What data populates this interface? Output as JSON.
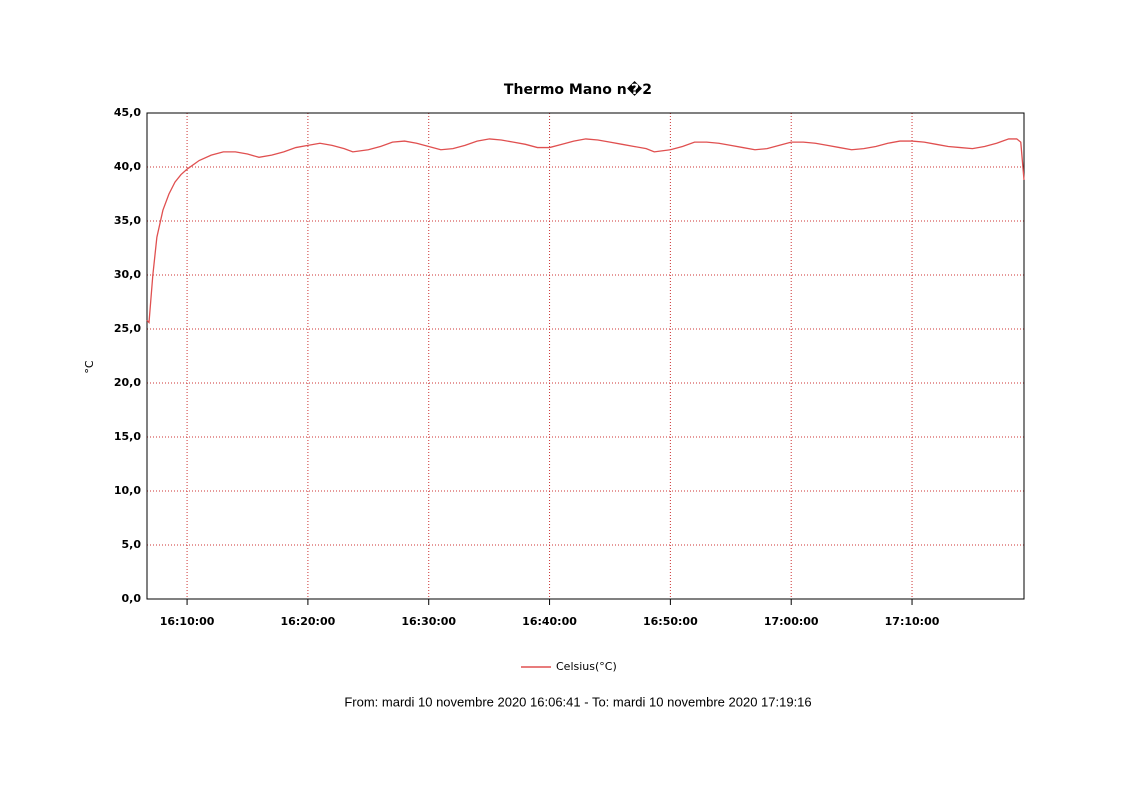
{
  "chart_data": {
    "type": "line",
    "title": "Thermo Mano n�2",
    "y_label": "°C",
    "footer": "From: mardi 10 novembre 2020 16:06:41  -  To: mardi 10 novembre 2020 17:19:16",
    "x": [
      "16:06:41",
      "16:06:51",
      "16:07:10",
      "16:07:30",
      "16:08:00",
      "16:08:30",
      "16:09:00",
      "16:09:30",
      "16:10:00",
      "16:11:00",
      "16:12:00",
      "16:13:00",
      "16:14:00",
      "16:15:00",
      "16:15:57",
      "16:17:00",
      "16:18:00",
      "16:19:00",
      "16:20:00",
      "16:21:00",
      "16:22:00",
      "16:23:00",
      "16:23:43",
      "16:25:00",
      "16:26:00",
      "16:27:00",
      "16:28:00",
      "16:29:00",
      "16:30:00",
      "16:31:00",
      "16:32:00",
      "16:33:00",
      "16:34:00",
      "16:35:02",
      "16:36:00",
      "16:37:00",
      "16:38:00",
      "16:39:00",
      "16:40:00",
      "16:41:00",
      "16:42:00",
      "16:43:00",
      "16:44:00",
      "16:45:00",
      "16:46:00",
      "16:47:00",
      "16:48:00",
      "16:48:40",
      "16:50:00",
      "16:51:00",
      "16:52:00",
      "16:53:00",
      "16:54:00",
      "16:55:00",
      "16:56:00",
      "16:57:00",
      "16:58:00",
      "16:59:00",
      "17:00:00",
      "17:01:00",
      "17:02:00",
      "17:03:00",
      "17:04:00",
      "17:05:00",
      "17:06:00",
      "17:07:00",
      "17:08:00",
      "17:09:00",
      "17:10:00",
      "17:11:00",
      "17:12:00",
      "17:13:00",
      "17:14:00",
      "17:15:00",
      "17:16:00",
      "17:17:00",
      "17:18:00",
      "17:18:40",
      "17:19:00",
      "17:19:16"
    ],
    "series": [
      {
        "name": "Celsius(°C)",
        "color": "#e05050",
        "values": [
          25.8,
          25.6,
          30,
          33.5,
          36,
          37.5,
          38.6,
          39.3,
          39.8,
          40.6,
          41.1,
          41.4,
          41.4,
          41.2,
          40.9,
          41.1,
          41.4,
          41.8,
          42.0,
          42.2,
          42.0,
          41.7,
          41.4,
          41.6,
          41.9,
          42.3,
          42.4,
          42.2,
          41.9,
          41.6,
          41.7,
          42.0,
          42.4,
          42.6,
          42.5,
          42.3,
          42.1,
          41.8,
          41.8,
          42.1,
          42.4,
          42.6,
          42.5,
          42.3,
          42.1,
          41.9,
          41.7,
          41.4,
          41.6,
          41.9,
          42.3,
          42.3,
          42.2,
          42.0,
          41.8,
          41.6,
          41.7,
          42.0,
          42.3,
          42.3,
          42.2,
          42.0,
          41.8,
          41.6,
          41.7,
          41.9,
          42.2,
          42.4,
          42.4,
          42.3,
          42.1,
          41.9,
          41.8,
          41.7,
          41.9,
          42.2,
          42.6,
          42.6,
          42.3,
          38.8
        ]
      }
    ],
    "xlim": [
      "16:06:41",
      "17:19:16"
    ],
    "xticks": [
      "16:10:00",
      "16:20:00",
      "16:30:00",
      "16:40:00",
      "16:50:00",
      "17:00:00",
      "17:10:00"
    ],
    "ylim": [
      0,
      45
    ],
    "yticks": [
      {
        "value": 0,
        "label": "0,0"
      },
      {
        "value": 5,
        "label": "5,0"
      },
      {
        "value": 10,
        "label": "10,0"
      },
      {
        "value": 15,
        "label": "15,0"
      },
      {
        "value": 20,
        "label": "20,0"
      },
      {
        "value": 25,
        "label": "25,0"
      },
      {
        "value": 30,
        "label": "30,0"
      },
      {
        "value": 35,
        "label": "35,0"
      },
      {
        "value": 40,
        "label": "40,0"
      },
      {
        "value": 45,
        "label": "45,0"
      }
    ],
    "grid": true,
    "grid_color": "#cc3333"
  }
}
